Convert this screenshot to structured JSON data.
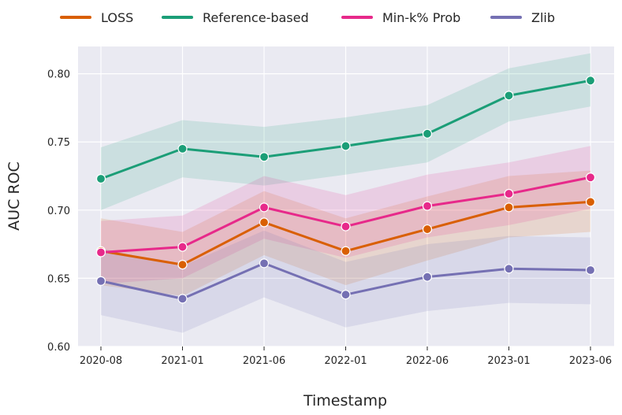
{
  "chart_data": {
    "type": "line",
    "title": "",
    "xlabel": "Timestamp",
    "ylabel": "AUC ROC",
    "categories": [
      "2020-08",
      "2021-01",
      "2021-06",
      "2022-01",
      "2022-06",
      "2023-01",
      "2023-06"
    ],
    "ylim": [
      0.6,
      0.82
    ],
    "yticks": [
      0.6,
      0.65,
      0.7,
      0.75,
      0.8
    ],
    "ytick_labels": [
      "0.60",
      "0.65",
      "0.70",
      "0.75",
      "0.80"
    ],
    "grid": true,
    "legend_position": "top",
    "series": [
      {
        "name": "LOSS",
        "color": "#d95f02",
        "values": [
          0.67,
          0.66,
          0.691,
          0.67,
          0.686,
          0.702,
          0.706
        ],
        "lower": [
          0.645,
          0.637,
          0.667,
          0.645,
          0.663,
          0.68,
          0.684
        ],
        "upper": [
          0.694,
          0.684,
          0.714,
          0.694,
          0.71,
          0.725,
          0.729
        ]
      },
      {
        "name": "Reference-based",
        "color": "#1b9e77",
        "values": [
          0.723,
          0.745,
          0.739,
          0.747,
          0.756,
          0.784,
          0.795
        ],
        "lower": [
          0.7,
          0.724,
          0.718,
          0.726,
          0.735,
          0.765,
          0.776
        ],
        "upper": [
          0.746,
          0.766,
          0.761,
          0.768,
          0.777,
          0.804,
          0.815
        ]
      },
      {
        "name": "Min-k% Prob",
        "color": "#e7298a",
        "values": [
          0.669,
          0.673,
          0.702,
          0.688,
          0.703,
          0.712,
          0.724
        ],
        "lower": [
          0.646,
          0.65,
          0.679,
          0.665,
          0.68,
          0.689,
          0.701
        ],
        "upper": [
          0.692,
          0.696,
          0.725,
          0.711,
          0.726,
          0.735,
          0.747
        ]
      },
      {
        "name": "Zlib",
        "color": "#7570b3",
        "values": [
          0.648,
          0.635,
          0.661,
          0.638,
          0.651,
          0.657,
          0.656
        ],
        "lower": [
          0.623,
          0.61,
          0.636,
          0.614,
          0.626,
          0.632,
          0.631
        ],
        "upper": [
          0.672,
          0.659,
          0.685,
          0.662,
          0.675,
          0.681,
          0.68
        ]
      }
    ]
  }
}
